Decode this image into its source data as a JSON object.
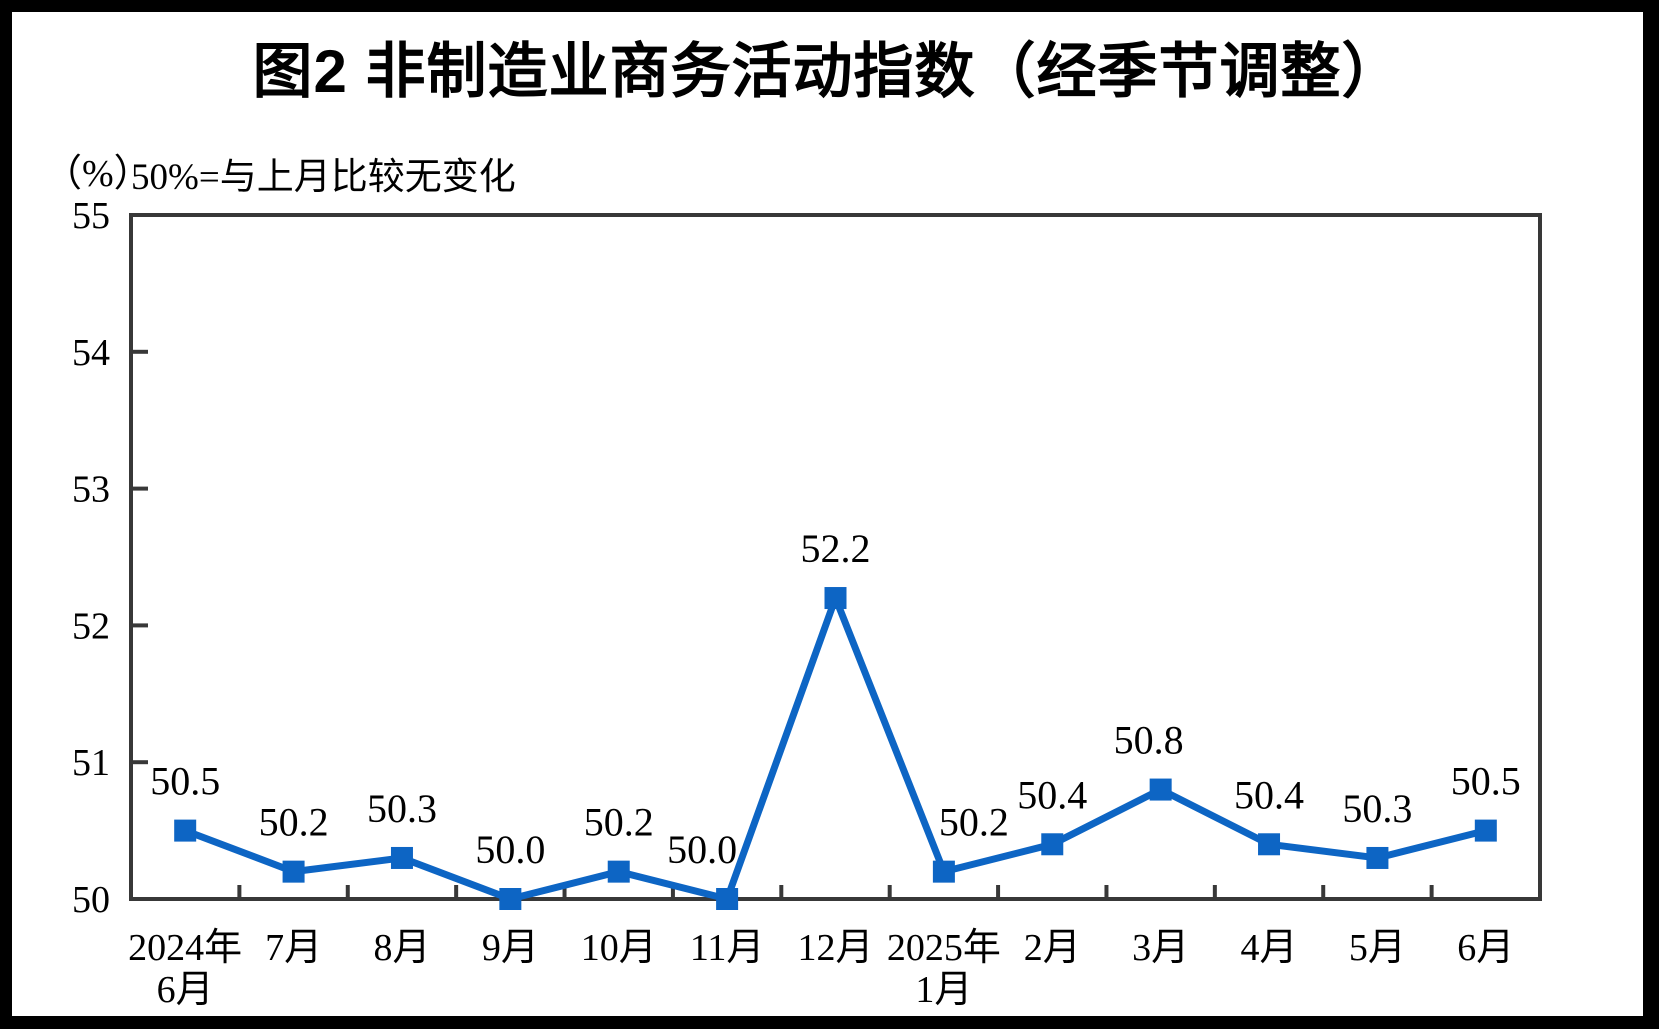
{
  "page": {
    "frame_color": "#000000",
    "background_color": "#ffffff"
  },
  "header": {
    "title": "图2 非制造业商务活动指数（经季节调整）",
    "unit_label": "（%）",
    "subtitle": "50%=与上月比较无变化"
  },
  "chart_data": {
    "type": "line",
    "title": "图2 非制造业商务活动指数（经季节调整）",
    "unit": "%",
    "note": "50%=与上月比较无变化",
    "categories": [
      [
        "2024年",
        "6月"
      ],
      [
        "7月"
      ],
      [
        "8月"
      ],
      [
        "9月"
      ],
      [
        "10月"
      ],
      [
        "11月"
      ],
      [
        "12月"
      ],
      [
        "2025年",
        "1月"
      ],
      [
        "2月"
      ],
      [
        "3月"
      ],
      [
        "4月"
      ],
      [
        "5月"
      ],
      [
        "6月"
      ]
    ],
    "values": [
      50.5,
      50.2,
      50.3,
      50.0,
      50.2,
      50.0,
      52.2,
      50.2,
      50.4,
      50.8,
      50.4,
      50.3,
      50.5
    ],
    "point_labels": [
      "50.5",
      "50.2",
      "50.3",
      "50.0",
      "50.2",
      "50.0",
      "52.2",
      "50.2",
      "50.4",
      "50.8",
      "50.4",
      "50.3",
      "50.5"
    ],
    "ylim": [
      50,
      55
    ],
    "yticks": [
      50,
      51,
      52,
      53,
      54,
      55
    ],
    "ytick_labels": [
      "50",
      "51",
      "52",
      "53",
      "54",
      "55"
    ],
    "grid": false,
    "legend": "none",
    "line_color": "#0d65c4",
    "marker": "square",
    "marker_color": "#0d65c4",
    "axis_color": "#383838",
    "text_color": "#000000",
    "label_dx": [
      0,
      0,
      0,
      0,
      0,
      -25,
      0,
      30,
      0,
      -12,
      0,
      0,
      0
    ]
  }
}
